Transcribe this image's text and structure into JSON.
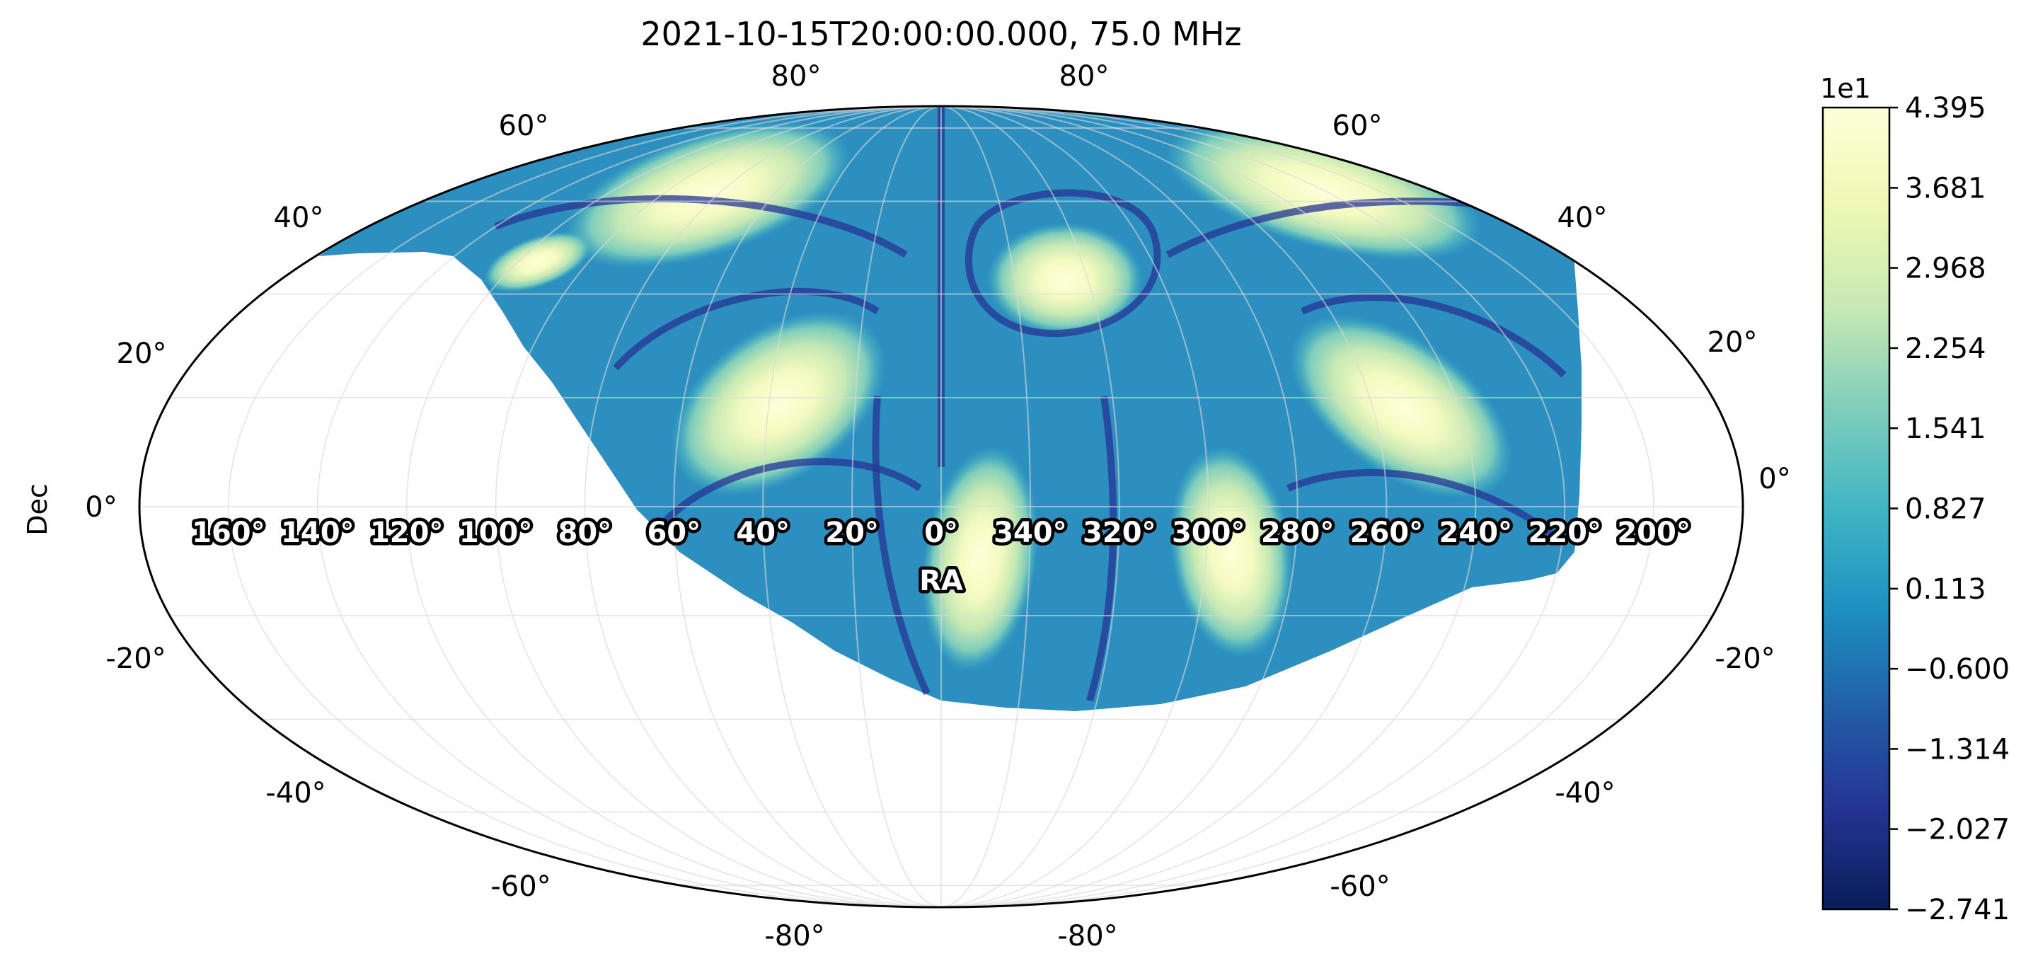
{
  "chart_data": {
    "type": "heatmap",
    "projection": "mollweide",
    "title": "2021-10-15T20:00:00.000, 75.0 MHz",
    "xlabel": "RA",
    "ylabel": "Dec",
    "grid": true,
    "ra_tick_labels": [
      "160°",
      "140°",
      "120°",
      "100°",
      "80°",
      "60°",
      "40°",
      "20°",
      "0°",
      "340°",
      "320°",
      "300°",
      "280°",
      "260°",
      "240°",
      "220°",
      "200°"
    ],
    "ra_tick_values": [
      160,
      140,
      120,
      100,
      80,
      60,
      40,
      20,
      0,
      340,
      320,
      300,
      280,
      260,
      240,
      220,
      200
    ],
    "dec_tick_values": [
      80,
      60,
      40,
      20,
      0,
      -20,
      -40,
      -60,
      -80
    ],
    "dec_tick_labels": [
      "80°",
      "60°",
      "40°",
      "20°",
      "0°",
      "-20°",
      "-40°",
      "-60°",
      "-80°"
    ],
    "colormap": "YlGnBu_r",
    "colorbar": {
      "scale_label": "1e1",
      "tick_labels": [
        "4.395",
        "3.681",
        "2.968",
        "2.254",
        "1.541",
        "0.827",
        "0.113",
        "−0.600",
        "−1.314",
        "−2.027",
        "−2.741"
      ],
      "tick_values": [
        4.395,
        3.681,
        2.968,
        2.254,
        1.541,
        0.827,
        0.113,
        -0.6,
        -1.314,
        -2.027,
        -2.741
      ],
      "range": [
        -2.741,
        4.395
      ],
      "colors": [
        "#081d58",
        "#253494",
        "#225ea8",
        "#1d91c0",
        "#41b6c4",
        "#7fcdbb",
        "#c7e9b4",
        "#edf8b1",
        "#ffffd9"
      ]
    },
    "visible_region": "above local horizon (north-dominated)",
    "bright_lobes": [
      {
        "ra": 340,
        "dec": 55
      },
      {
        "ra": 35,
        "dec": 60
      },
      {
        "ra": 285,
        "dec": 65
      },
      {
        "ra": 35,
        "dec": 18
      },
      {
        "ra": 255,
        "dec": 18
      },
      {
        "ra": 0,
        "dec": -12
      },
      {
        "ra": 300,
        "dec": -12
      }
    ]
  }
}
